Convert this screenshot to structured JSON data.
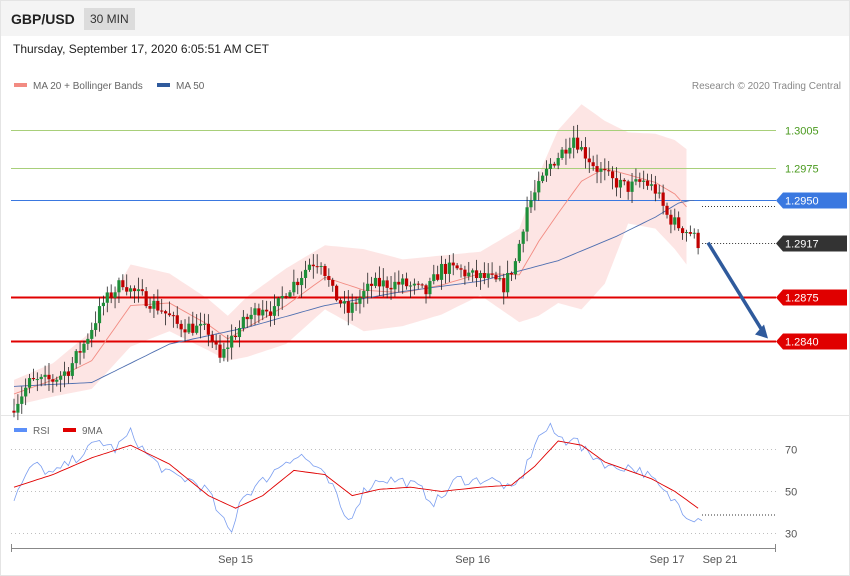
{
  "header": {
    "symbol": "GBP/USD",
    "timeframe": "30 MIN"
  },
  "datetime": "Thursday, September 17, 2020 6:05:51 AM CET",
  "legend_top": [
    {
      "label": "MA 20 + Bollinger Bands",
      "color": "#f28b82"
    },
    {
      "label": "MA 50",
      "color": "#2f5a9c"
    }
  ],
  "legend_bottom": [
    {
      "label": "RSI",
      "color": "#5b8ff9"
    },
    {
      "label": "9MA",
      "color": "#e00000"
    }
  ],
  "credit": "Research © 2020 Trading Central",
  "colors": {
    "up": "#1e8f3a",
    "down": "#c00000",
    "resistance": "#a8cf7a",
    "pivot": "#3a78e0",
    "support": "#e00000",
    "last": "#333333",
    "arrow": "#2f5a9c"
  },
  "chart_data": [
    {
      "type": "candlestick",
      "ylim": [
        1.2785,
        1.3047
      ],
      "levels": [
        {
          "value": 1.3005,
          "label": "1.3005",
          "kind": "resistance"
        },
        {
          "value": 1.2975,
          "label": "1.2975",
          "kind": "resistance"
        },
        {
          "value": 1.295,
          "label": "1.2950",
          "kind": "pivot"
        },
        {
          "value": 1.2917,
          "label": "1.2917",
          "kind": "last"
        },
        {
          "value": 1.2875,
          "label": "1.2875",
          "kind": "support"
        },
        {
          "value": 1.284,
          "label": "1.2840",
          "kind": "support"
        }
      ],
      "close_anchors": [
        [
          0,
          1.279
        ],
        [
          4,
          1.2808
        ],
        [
          10,
          1.281
        ],
        [
          14,
          1.2818
        ],
        [
          18,
          1.2838
        ],
        [
          23,
          1.287
        ],
        [
          28,
          1.2887
        ],
        [
          30,
          1.288
        ],
        [
          34,
          1.2873
        ],
        [
          38,
          1.2865
        ],
        [
          42,
          1.2853
        ],
        [
          46,
          1.2851
        ],
        [
          50,
          1.2848
        ],
        [
          53,
          1.2826
        ],
        [
          56,
          1.2843
        ],
        [
          60,
          1.2858
        ],
        [
          64,
          1.2868
        ],
        [
          67,
          1.2863
        ],
        [
          70,
          1.288
        ],
        [
          73,
          1.2888
        ],
        [
          76,
          1.2901
        ],
        [
          79,
          1.2903
        ],
        [
          82,
          1.2878
        ],
        [
          86,
          1.2863
        ],
        [
          88,
          1.2871
        ],
        [
          92,
          1.2884
        ],
        [
          95,
          1.2885
        ],
        [
          100,
          1.2885
        ],
        [
          106,
          1.2878
        ],
        [
          110,
          1.2897
        ],
        [
          114,
          1.2896
        ],
        [
          118,
          1.2891
        ],
        [
          122,
          1.2889
        ],
        [
          126,
          1.2883
        ],
        [
          129,
          1.2902
        ],
        [
          132,
          1.2945
        ],
        [
          135,
          1.296
        ],
        [
          138,
          1.2978
        ],
        [
          141,
          1.2988
        ],
        [
          144,
          1.3
        ],
        [
          146,
          1.299
        ],
        [
          150,
          1.2975
        ],
        [
          154,
          1.2965
        ],
        [
          158,
          1.296
        ],
        [
          162,
          1.2965
        ],
        [
          165,
          1.2958
        ],
        [
          168,
          1.2938
        ],
        [
          171,
          1.293
        ],
        [
          174,
          1.2925
        ],
        [
          176,
          1.2917
        ]
      ],
      "ma20_anchors": [
        [
          0,
          1.2799
        ],
        [
          10,
          1.281
        ],
        [
          20,
          1.2825
        ],
        [
          30,
          1.2868
        ],
        [
          40,
          1.287
        ],
        [
          50,
          1.2853
        ],
        [
          55,
          1.2842
        ],
        [
          60,
          1.2851
        ],
        [
          70,
          1.2868
        ],
        [
          80,
          1.289
        ],
        [
          90,
          1.288
        ],
        [
          100,
          1.2878
        ],
        [
          110,
          1.2884
        ],
        [
          120,
          1.2893
        ],
        [
          130,
          1.2892
        ],
        [
          135,
          1.2918
        ],
        [
          140,
          1.294
        ],
        [
          146,
          1.2965
        ],
        [
          152,
          1.2975
        ],
        [
          158,
          1.297
        ],
        [
          165,
          1.2964
        ],
        [
          170,
          1.2955
        ],
        [
          173,
          1.2945
        ]
      ],
      "bb_upper_anchors": [
        [
          0,
          1.281
        ],
        [
          10,
          1.2823
        ],
        [
          20,
          1.2848
        ],
        [
          30,
          1.29
        ],
        [
          40,
          1.2893
        ],
        [
          50,
          1.2873
        ],
        [
          55,
          1.286
        ],
        [
          60,
          1.2875
        ],
        [
          70,
          1.2897
        ],
        [
          80,
          1.2915
        ],
        [
          90,
          1.2912
        ],
        [
          100,
          1.2904
        ],
        [
          110,
          1.2907
        ],
        [
          120,
          1.291
        ],
        [
          130,
          1.2928
        ],
        [
          135,
          1.297
        ],
        [
          140,
          1.3005
        ],
        [
          146,
          1.3025
        ],
        [
          152,
          1.3012
        ],
        [
          158,
          1.3003
        ],
        [
          165,
          1.3002
        ],
        [
          170,
          1.2997
        ],
        [
          173,
          1.299
        ]
      ],
      "bb_lower_anchors": [
        [
          0,
          1.279
        ],
        [
          10,
          1.2797
        ],
        [
          20,
          1.2803
        ],
        [
          30,
          1.2836
        ],
        [
          40,
          1.2848
        ],
        [
          50,
          1.2833
        ],
        [
          55,
          1.2825
        ],
        [
          60,
          1.2828
        ],
        [
          70,
          1.2838
        ],
        [
          80,
          1.2865
        ],
        [
          90,
          1.2848
        ],
        [
          100,
          1.2852
        ],
        [
          110,
          1.2861
        ],
        [
          120,
          1.2876
        ],
        [
          130,
          1.2855
        ],
        [
          135,
          1.286
        ],
        [
          140,
          1.287
        ],
        [
          146,
          1.2865
        ],
        [
          152,
          1.2885
        ],
        [
          158,
          1.2932
        ],
        [
          165,
          1.2928
        ],
        [
          170,
          1.2912
        ],
        [
          173,
          1.29
        ]
      ],
      "ma50_anchors": [
        [
          0,
          1.2805
        ],
        [
          20,
          1.2808
        ],
        [
          40,
          1.2838
        ],
        [
          60,
          1.2851
        ],
        [
          80,
          1.2868
        ],
        [
          100,
          1.2879
        ],
        [
          120,
          1.2887
        ],
        [
          140,
          1.2903
        ],
        [
          155,
          1.2922
        ],
        [
          165,
          1.2937
        ],
        [
          171,
          1.2948
        ],
        [
          174,
          1.295
        ]
      ],
      "projection": {
        "from": 1.2917,
        "to": 1.284
      }
    },
    {
      "type": "line",
      "name": "RSI",
      "ylim": [
        24,
        84
      ],
      "y_ticks": [
        70,
        50,
        30
      ],
      "x_ticks": [
        "Sep 15",
        "Sep 16",
        "Sep 17",
        "Sep 21"
      ],
      "x_tick_index": [
        57,
        118,
        168,
        177
      ],
      "rsi_anchors": [
        [
          0,
          47
        ],
        [
          5,
          63
        ],
        [
          10,
          58
        ],
        [
          16,
          66
        ],
        [
          22,
          74
        ],
        [
          26,
          70
        ],
        [
          30,
          78
        ],
        [
          34,
          68
        ],
        [
          40,
          58
        ],
        [
          46,
          55
        ],
        [
          50,
          50
        ],
        [
          53,
          38
        ],
        [
          56,
          30
        ],
        [
          58,
          46
        ],
        [
          62,
          52
        ],
        [
          66,
          58
        ],
        [
          70,
          65
        ],
        [
          74,
          67
        ],
        [
          78,
          61
        ],
        [
          82,
          52
        ],
        [
          84,
          42
        ],
        [
          86,
          36
        ],
        [
          90,
          50
        ],
        [
          94,
          56
        ],
        [
          100,
          55
        ],
        [
          104,
          52
        ],
        [
          108,
          45
        ],
        [
          110,
          47
        ],
        [
          114,
          56
        ],
        [
          118,
          55
        ],
        [
          122,
          56
        ],
        [
          126,
          53
        ],
        [
          128,
          50
        ],
        [
          131,
          58
        ],
        [
          134,
          73
        ],
        [
          136,
          78
        ],
        [
          138,
          80
        ],
        [
          140,
          76
        ],
        [
          142,
          74
        ],
        [
          144,
          77
        ],
        [
          146,
          70
        ],
        [
          150,
          66
        ],
        [
          154,
          61
        ],
        [
          158,
          62
        ],
        [
          162,
          59
        ],
        [
          164,
          56
        ],
        [
          166,
          52
        ],
        [
          168,
          48
        ],
        [
          171,
          44
        ],
        [
          173,
          39
        ],
        [
          176,
          37
        ],
        [
          178,
          39
        ]
      ],
      "ma9_anchors": [
        [
          0,
          52
        ],
        [
          10,
          58
        ],
        [
          20,
          66
        ],
        [
          30,
          72
        ],
        [
          40,
          63
        ],
        [
          50,
          48
        ],
        [
          57,
          42
        ],
        [
          64,
          48
        ],
        [
          72,
          60
        ],
        [
          80,
          58
        ],
        [
          87,
          48
        ],
        [
          94,
          51
        ],
        [
          102,
          52
        ],
        [
          110,
          50
        ],
        [
          120,
          52
        ],
        [
          128,
          53
        ],
        [
          134,
          62
        ],
        [
          140,
          74
        ],
        [
          146,
          72
        ],
        [
          152,
          64
        ],
        [
          158,
          60
        ],
        [
          164,
          56
        ],
        [
          170,
          50
        ],
        [
          176,
          42
        ]
      ]
    }
  ]
}
